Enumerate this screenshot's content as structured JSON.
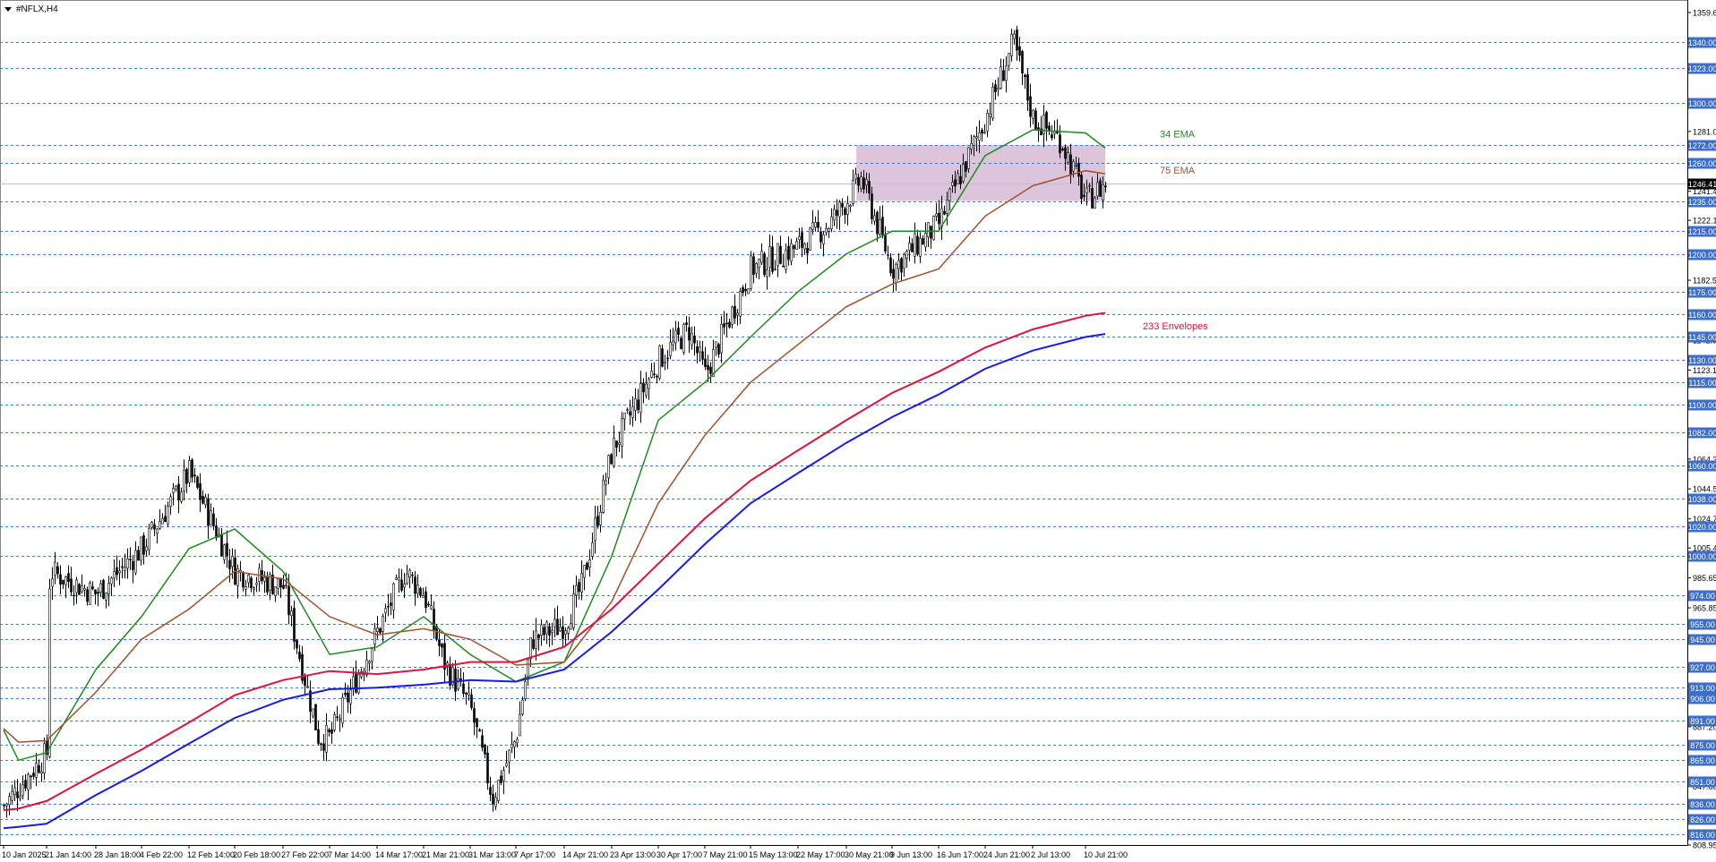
{
  "window": {
    "title": "#NFLX,H4"
  },
  "price_axis": {
    "ticks": [
      "1359.65",
      "1323.00",
      "1300.00",
      "1281.00",
      "1260.00",
      "1241.40",
      "1222.15",
      "1200.00",
      "1182.55",
      "1160.00",
      "1142.95",
      "1123.15",
      "1100.00",
      "1082.00",
      "1064.30",
      "1044.55",
      "1024.70",
      "1005.45",
      "985.65",
      "965.85",
      "945.00",
      "927.00",
      "906.00",
      "887.20",
      "865.00",
      "847.60",
      "826.00",
      "808.95"
    ],
    "current_price": "1246.41"
  },
  "time_axis": {
    "labels": [
      "10 Jan 2025",
      "21 Jan 14:00",
      "28 Jan 18:00",
      "4 Feb 22:00",
      "12 Feb 14:00",
      "20 Feb 18:00",
      "27 Feb 22:00",
      "7 Mar 14:00",
      "14 Mar 17:00",
      "21 Mar 21:00",
      "31 Mar 13:00",
      "7 Apr 17:00",
      "14 Apr 21:00",
      "23 Apr 13:00",
      "30 Apr 17:00",
      "7 May 21:00",
      "15 May 13:00",
      "22 May 17:00",
      "30 May 21:00",
      "9 Jun 13:00",
      "16 Jun 17:00",
      "24 Jun 21:00",
      "2 Jul 13:00",
      "10 Jul 21:00"
    ]
  },
  "annotations": {
    "ema34_label": "34 EMA",
    "ema75_label": "75 EMA",
    "env_label": "233 Envelopes"
  },
  "colors": {
    "candle": "#000000",
    "ema34": "#1e8a1e",
    "ema75": "#a0522d",
    "env_upper": "#dc143c",
    "env_lower": "#1a1ae6",
    "zone": "#d8bfd8",
    "level_line": "#4a78c8",
    "level_badge": "#3d6ec9",
    "price_badge": "#000000"
  },
  "chart_data": {
    "type": "candlestick",
    "symbol": "#NFLX",
    "timeframe": "H4",
    "ylim": [
      808.95,
      1359.65
    ],
    "horizontal_levels": [
      1340,
      1323,
      1300,
      1272,
      1260,
      1235,
      1215,
      1200,
      1175,
      1160,
      1145,
      1130,
      1115,
      1100,
      1082,
      1060,
      1038,
      1020,
      1000,
      974,
      955,
      945,
      927,
      913,
      906,
      891,
      875,
      865,
      851,
      836,
      826,
      816
    ],
    "zone": {
      "from_date": "2 Jun 2025",
      "to_date": "14 Jul 2025",
      "low": 1235,
      "high": 1272
    },
    "close_path": [
      [
        "10 Jan 2025",
        835
      ],
      [
        "21 Jan 14:00",
        870
      ],
      [
        "22 Jan",
        990
      ],
      [
        "28 Jan 18:00",
        975
      ],
      [
        "4 Feb 22:00",
        1005
      ],
      [
        "12 Feb 14:00",
        1055
      ],
      [
        "20 Feb 18:00",
        990
      ],
      [
        "27 Feb 22:00",
        980
      ],
      [
        "5 Mar",
        880
      ],
      [
        "7 Mar 14:00",
        880
      ],
      [
        "14 Mar 17:00",
        950
      ],
      [
        "19 Mar",
        990
      ],
      [
        "21 Mar 21:00",
        975
      ],
      [
        "26 Mar",
        930
      ],
      [
        "31 Mar 13:00",
        900
      ],
      [
        "4 Apr",
        840
      ],
      [
        "7 Apr 17:00",
        880
      ],
      [
        "10 Apr",
        945
      ],
      [
        "14 Apr 21:00",
        955
      ],
      [
        "18 Apr",
        980
      ],
      [
        "23 Apr 13:00",
        1070
      ],
      [
        "30 Apr 17:00",
        1130
      ],
      [
        "5 May",
        1150
      ],
      [
        "7 May 21:00",
        1120
      ],
      [
        "15 May 13:00",
        1190
      ],
      [
        "22 May 17:00",
        1205
      ],
      [
        "28 May",
        1220
      ],
      [
        "30 May 21:00",
        1235
      ],
      [
        "3 Jun",
        1250
      ],
      [
        "9 Jun 13:00",
        1190
      ],
      [
        "16 Jun 17:00",
        1220
      ],
      [
        "24 Jun 21:00",
        1290
      ],
      [
        "30 Jun",
        1340
      ],
      [
        "2 Jul 13:00",
        1290
      ],
      [
        "7 Jul",
        1275
      ],
      [
        "10 Jul 21:00",
        1235
      ],
      [
        "14 Jul",
        1246.41
      ]
    ],
    "series": [
      {
        "name": "34 EMA",
        "points": [
          [
            "10 Jan 2025",
            885
          ],
          [
            "14 Jan",
            865
          ],
          [
            "21 Jan 14:00",
            870
          ],
          [
            "28 Jan 18:00",
            925
          ],
          [
            "4 Feb 22:00",
            960
          ],
          [
            "12 Feb 14:00",
            1005
          ],
          [
            "20 Feb 18:00",
            1018
          ],
          [
            "27 Feb 22:00",
            990
          ],
          [
            "7 Mar 14:00",
            935
          ],
          [
            "14 Mar 17:00",
            940
          ],
          [
            "21 Mar 21:00",
            960
          ],
          [
            "31 Mar 13:00",
            935
          ],
          [
            "7 Apr 17:00",
            917
          ],
          [
            "14 Apr 21:00",
            930
          ],
          [
            "23 Apr 13:00",
            1000
          ],
          [
            "30 Apr 17:00",
            1090
          ],
          [
            "7 May 21:00",
            1115
          ],
          [
            "15 May 13:00",
            1145
          ],
          [
            "22 May 17:00",
            1175
          ],
          [
            "30 May 21:00",
            1200
          ],
          [
            "9 Jun 13:00",
            1215
          ],
          [
            "16 Jun 17:00",
            1215
          ],
          [
            "24 Jun 21:00",
            1265
          ],
          [
            "2 Jul 13:00",
            1282
          ],
          [
            "10 Jul 21:00",
            1280
          ],
          [
            "14 Jul",
            1270
          ]
        ]
      },
      {
        "name": "75 EMA",
        "points": [
          [
            "10 Jan 2025",
            886
          ],
          [
            "14 Jan",
            877
          ],
          [
            "21 Jan 14:00",
            878
          ],
          [
            "28 Jan 18:00",
            910
          ],
          [
            "4 Feb 22:00",
            945
          ],
          [
            "12 Feb 14:00",
            965
          ],
          [
            "20 Feb 18:00",
            990
          ],
          [
            "27 Feb 22:00",
            985
          ],
          [
            "7 Mar 14:00",
            960
          ],
          [
            "14 Mar 17:00",
            948
          ],
          [
            "21 Mar 21:00",
            952
          ],
          [
            "31 Mar 13:00",
            945
          ],
          [
            "7 Apr 17:00",
            928
          ],
          [
            "14 Apr 21:00",
            930
          ],
          [
            "23 Apr 13:00",
            970
          ],
          [
            "30 Apr 17:00",
            1035
          ],
          [
            "7 May 21:00",
            1080
          ],
          [
            "15 May 13:00",
            1115
          ],
          [
            "22 May 17:00",
            1140
          ],
          [
            "30 May 21:00",
            1165
          ],
          [
            "9 Jun 13:00",
            1180
          ],
          [
            "16 Jun 17:00",
            1190
          ],
          [
            "24 Jun 21:00",
            1225
          ],
          [
            "2 Jul 13:00",
            1245
          ],
          [
            "10 Jul 21:00",
            1255
          ],
          [
            "14 Jul",
            1253
          ]
        ]
      },
      {
        "name": "233 Envelopes upper",
        "points": [
          [
            "10 Jan 2025",
            832
          ],
          [
            "14 Jan",
            833
          ],
          [
            "21 Jan 14:00",
            838
          ],
          [
            "28 Jan 18:00",
            856
          ],
          [
            "4 Feb 22:00",
            872
          ],
          [
            "12 Feb 14:00",
            890
          ],
          [
            "20 Feb 18:00",
            908
          ],
          [
            "27 Feb 22:00",
            918
          ],
          [
            "7 Mar 14:00",
            924
          ],
          [
            "14 Mar 17:00",
            922
          ],
          [
            "21 Mar 21:00",
            925
          ],
          [
            "31 Mar 13:00",
            930
          ],
          [
            "7 Apr 17:00",
            930
          ],
          [
            "14 Apr 21:00",
            940
          ],
          [
            "23 Apr 13:00",
            965
          ],
          [
            "30 Apr 17:00",
            995
          ],
          [
            "7 May 21:00",
            1025
          ],
          [
            "15 May 13:00",
            1050
          ],
          [
            "22 May 17:00",
            1070
          ],
          [
            "30 May 21:00",
            1090
          ],
          [
            "9 Jun 13:00",
            1108
          ],
          [
            "16 Jun 17:00",
            1122
          ],
          [
            "24 Jun 21:00",
            1138
          ],
          [
            "2 Jul 13:00",
            1150
          ],
          [
            "10 Jul 21:00",
            1159
          ],
          [
            "14 Jul",
            1161
          ]
        ]
      },
      {
        "name": "233 Envelopes lower",
        "points": [
          [
            "10 Jan 2025",
            820
          ],
          [
            "14 Jan",
            821
          ],
          [
            "21 Jan 14:00",
            823
          ],
          [
            "28 Jan 18:00",
            842
          ],
          [
            "4 Feb 22:00",
            858
          ],
          [
            "12 Feb 14:00",
            876
          ],
          [
            "20 Feb 18:00",
            893
          ],
          [
            "27 Feb 22:00",
            905
          ],
          [
            "7 Mar 14:00",
            912
          ],
          [
            "14 Mar 17:00",
            913
          ],
          [
            "21 Mar 21:00",
            915
          ],
          [
            "31 Mar 13:00",
            918
          ],
          [
            "7 Apr 17:00",
            917
          ],
          [
            "14 Apr 21:00",
            925
          ],
          [
            "23 Apr 13:00",
            950
          ],
          [
            "30 Apr 17:00",
            978
          ],
          [
            "7 May 21:00",
            1008
          ],
          [
            "15 May 13:00",
            1035
          ],
          [
            "22 May 17:00",
            1055
          ],
          [
            "30 May 21:00",
            1075
          ],
          [
            "9 Jun 13:00",
            1092
          ],
          [
            "16 Jun 17:00",
            1107
          ],
          [
            "24 Jun 21:00",
            1124
          ],
          [
            "2 Jul 13:00",
            1136
          ],
          [
            "10 Jul 21:00",
            1145
          ],
          [
            "14 Jul",
            1147
          ]
        ]
      }
    ],
    "grid": false
  }
}
